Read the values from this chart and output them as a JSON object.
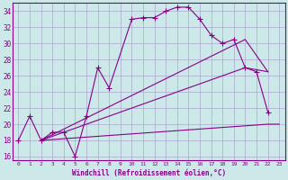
{
  "xlabel": "Windchill (Refroidissement éolien,°C)",
  "bg_color": "#cce8e8",
  "grid_color": "#aaaacc",
  "line_color": "#880088",
  "xlim": [
    -0.5,
    23.5
  ],
  "ylim": [
    15.5,
    35.0
  ],
  "yticks": [
    16,
    18,
    20,
    22,
    24,
    26,
    28,
    30,
    32,
    34
  ],
  "xticks": [
    0,
    1,
    2,
    3,
    4,
    5,
    6,
    7,
    8,
    9,
    10,
    11,
    12,
    13,
    14,
    15,
    16,
    17,
    18,
    19,
    20,
    21,
    22,
    23
  ],
  "series_marker": {
    "x": [
      0,
      1,
      2,
      3,
      4,
      5,
      6,
      7,
      8,
      10,
      11,
      12,
      13,
      14,
      15,
      16,
      17,
      18,
      19,
      20,
      21,
      22
    ],
    "y": [
      18,
      21,
      18,
      19,
      19,
      16,
      21,
      27,
      24.5,
      33,
      33.2,
      33.2,
      34.0,
      34.5,
      34.5,
      33.0,
      31.0,
      30.0,
      30.5,
      27.0,
      26.5,
      21.5
    ]
  },
  "line2": {
    "x": [
      2,
      20,
      22
    ],
    "y": [
      18,
      27.0,
      26.5
    ]
  },
  "line3": {
    "x": [
      2,
      20,
      22
    ],
    "y": [
      18,
      30.5,
      26.5
    ]
  },
  "line4": {
    "x": [
      2,
      22,
      23
    ],
    "y": [
      18,
      20.0,
      20.0
    ]
  }
}
